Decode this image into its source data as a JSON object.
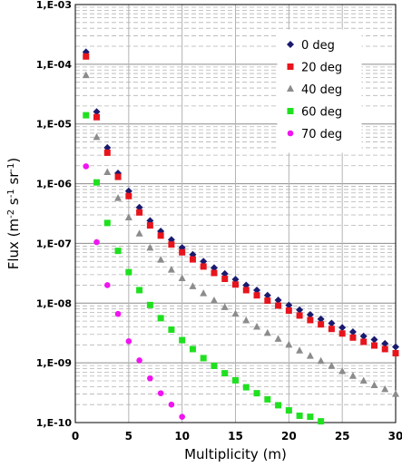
{
  "chart_data": {
    "type": "scatter",
    "xlabel": "Multiplicity (m)",
    "ylabel_parts": [
      "Flux (m",
      "-2",
      " s",
      "-1",
      " sr",
      "-1",
      ")"
    ],
    "xlim": [
      0,
      30
    ],
    "ylim": [
      1e-10,
      0.001
    ],
    "yscale": "log",
    "x_ticks": [
      0,
      5,
      10,
      15,
      20,
      25,
      30
    ],
    "y_ticks": [
      {
        "value": 0.001,
        "label": "1,E-03"
      },
      {
        "value": 0.0001,
        "label": "1,E-04"
      },
      {
        "value": 1e-05,
        "label": "1,E-05"
      },
      {
        "value": 1e-06,
        "label": "1,E-06"
      },
      {
        "value": 1e-07,
        "label": "1,E-07"
      },
      {
        "value": 1e-08,
        "label": "1,E-08"
      },
      {
        "value": 1e-09,
        "label": "1,E-09"
      },
      {
        "value": 1e-10,
        "label": "1,E-10"
      }
    ],
    "grid": {
      "major_y": true,
      "minor_y": true,
      "major_x": true
    },
    "legend_position": "top-right",
    "series": [
      {
        "name": "0 deg",
        "marker": "diamond",
        "color": "#1a1a6e",
        "x": [
          1,
          2,
          3,
          4,
          5,
          6,
          7,
          8,
          9,
          10,
          11,
          12,
          13,
          14,
          15,
          16,
          17,
          18,
          19,
          20,
          21,
          22,
          23,
          24,
          25,
          26,
          27,
          28,
          29,
          30
        ],
        "y": [
          0.00016,
          1.6e-05,
          4e-06,
          1.5e-06,
          7.5e-07,
          4e-07,
          2.4e-07,
          1.6e-07,
          1.15e-07,
          8.5e-08,
          6.5e-08,
          5e-08,
          3.9e-08,
          3.1e-08,
          2.5e-08,
          2e-08,
          1.65e-08,
          1.35e-08,
          1.12e-08,
          9.2e-09,
          7.7e-09,
          6.4e-09,
          5.4e-09,
          4.6e-09,
          3.9e-09,
          3.3e-09,
          2.8e-09,
          2.45e-09,
          2.1e-09,
          1.85e-09
        ]
      },
      {
        "name": "20 deg",
        "marker": "square",
        "color": "#e8141c",
        "x": [
          1,
          2,
          3,
          4,
          5,
          6,
          7,
          8,
          9,
          10,
          11,
          12,
          13,
          14,
          15,
          16,
          17,
          18,
          19,
          20,
          21,
          22,
          23,
          24,
          25,
          26,
          27,
          28,
          29,
          30
        ],
        "y": [
          0.000135,
          1.3e-05,
          3.3e-06,
          1.3e-06,
          6.2e-07,
          3.3e-07,
          2e-07,
          1.35e-07,
          9.6e-08,
          7.1e-08,
          5.4e-08,
          4.1e-08,
          3.2e-08,
          2.55e-08,
          2.05e-08,
          1.65e-08,
          1.35e-08,
          1.1e-08,
          9.1e-09,
          7.5e-09,
          6.2e-09,
          5.2e-09,
          4.4e-09,
          3.7e-09,
          3.1e-09,
          2.65e-09,
          2.25e-09,
          1.95e-09,
          1.7e-09,
          1.45e-09
        ]
      },
      {
        "name": "40 deg",
        "marker": "triangle",
        "color": "#8c8c8c",
        "x": [
          1,
          2,
          3,
          4,
          5,
          6,
          7,
          8,
          9,
          10,
          11,
          12,
          13,
          14,
          15,
          16,
          17,
          18,
          19,
          20,
          21,
          22,
          23,
          24,
          25,
          26,
          27,
          28,
          29,
          30
        ],
        "y": [
          6.5e-05,
          6e-06,
          1.55e-06,
          5.7e-07,
          2.7e-07,
          1.45e-07,
          8.4e-08,
          5.3e-08,
          3.6e-08,
          2.6e-08,
          1.9e-08,
          1.45e-08,
          1.1e-08,
          8.5e-09,
          6.6e-09,
          5.1e-09,
          4e-09,
          3.15e-09,
          2.5e-09,
          2e-09,
          1.6e-09,
          1.3e-09,
          1.07e-09,
          8.8e-10,
          7.2e-10,
          6e-10,
          5e-10,
          4.2e-10,
          3.6e-10,
          3e-10
        ]
      },
      {
        "name": "60 deg",
        "marker": "square",
        "color": "#1fe01f",
        "x": [
          1,
          2,
          3,
          4,
          5,
          6,
          7,
          8,
          9,
          10,
          11,
          12,
          13,
          14,
          15,
          16,
          17,
          18,
          19,
          20,
          21,
          22,
          23
        ],
        "y": [
          1.4e-05,
          1.05e-06,
          2.2e-07,
          7.5e-08,
          3.3e-08,
          1.65e-08,
          9.3e-09,
          5.6e-09,
          3.6e-09,
          2.4e-09,
          1.7e-09,
          1.2e-09,
          8.9e-10,
          6.7e-10,
          5.1e-10,
          3.9e-10,
          3.1e-10,
          2.45e-10,
          1.95e-10,
          1.6e-10,
          1.3e-10,
          1.25e-10,
          1.05e-10
        ]
      },
      {
        "name": "70 deg",
        "marker": "circle",
        "color": "#f014f0",
        "x": [
          1,
          2,
          3,
          4,
          5,
          6,
          7,
          8,
          9,
          10
        ],
        "y": [
          1.95e-06,
          1.05e-07,
          2e-08,
          6.6e-09,
          2.3e-09,
          1.1e-09,
          5.5e-10,
          3.1e-10,
          2e-10,
          1.25e-10
        ]
      }
    ]
  }
}
